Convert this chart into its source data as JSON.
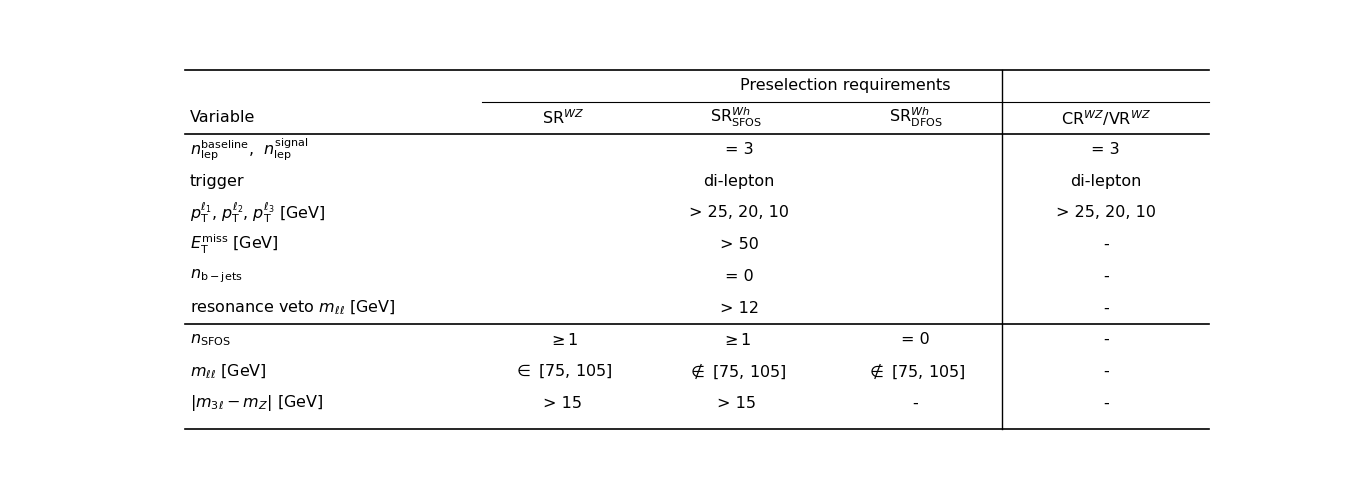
{
  "title": "Preselection requirements",
  "rows": [
    {
      "variable": "$n_{\\mathrm{lep}}^{\\mathrm{baseline}}$,  $n_{\\mathrm{lep}}^{\\mathrm{signal}}$",
      "srwz": "",
      "srwh_sfos": "= 3",
      "srwh_dfos": "",
      "crwz": "= 3",
      "span_middle": true
    },
    {
      "variable": "trigger",
      "srwz": "",
      "srwh_sfos": "di-lepton",
      "srwh_dfos": "",
      "crwz": "di-lepton",
      "span_middle": true
    },
    {
      "variable": "$p_{\\mathrm{T}}^{\\ell_1}$, $p_{\\mathrm{T}}^{\\ell_2}$, $p_{\\mathrm{T}}^{\\ell_3}$ [GeV]",
      "srwz": "",
      "srwh_sfos": "> 25, 20, 10",
      "srwh_dfos": "",
      "crwz": "> 25, 20, 10",
      "span_middle": true
    },
    {
      "variable": "$E_{\\mathrm{T}}^{\\mathrm{miss}}$ [GeV]",
      "srwz": "",
      "srwh_sfos": "> 50",
      "srwh_dfos": "",
      "crwz": "-",
      "span_middle": true
    },
    {
      "variable": "$n_{\\mathrm{b-jets}}$",
      "srwz": "",
      "srwh_sfos": "= 0",
      "srwh_dfos": "",
      "crwz": "-",
      "span_middle": true
    },
    {
      "variable": "resonance veto $m_{\\ell\\ell}$ [GeV]",
      "srwz": "",
      "srwh_sfos": "> 12",
      "srwh_dfos": "",
      "crwz": "-",
      "span_middle": true
    },
    {
      "variable": "$n_{\\mathrm{SFOS}}$",
      "srwz": "$\\geq 1$",
      "srwh_sfos": "$\\geq 1$",
      "srwh_dfos": "= 0",
      "crwz": "-",
      "span_middle": false
    },
    {
      "variable": "$m_{\\ell\\ell}$ [GeV]",
      "srwz": "$\\in$ [75, 105]",
      "srwh_sfos": "$\\notin$ [75, 105]",
      "srwh_dfos": "$\\notin$ [75, 105]",
      "crwz": "-",
      "span_middle": false
    },
    {
      "variable": "$|m_{3\\ell} - m_Z|$ [GeV]",
      "srwz": "> 15",
      "srwh_sfos": "> 15",
      "srwh_dfos": "-",
      "crwz": "-",
      "span_middle": false
    }
  ],
  "separator_after_row": 5,
  "figsize": [
    13.53,
    4.9
  ],
  "dpi": 100,
  "bg_color": "#ffffff",
  "line_color": "#000000",
  "font_size": 11.5
}
